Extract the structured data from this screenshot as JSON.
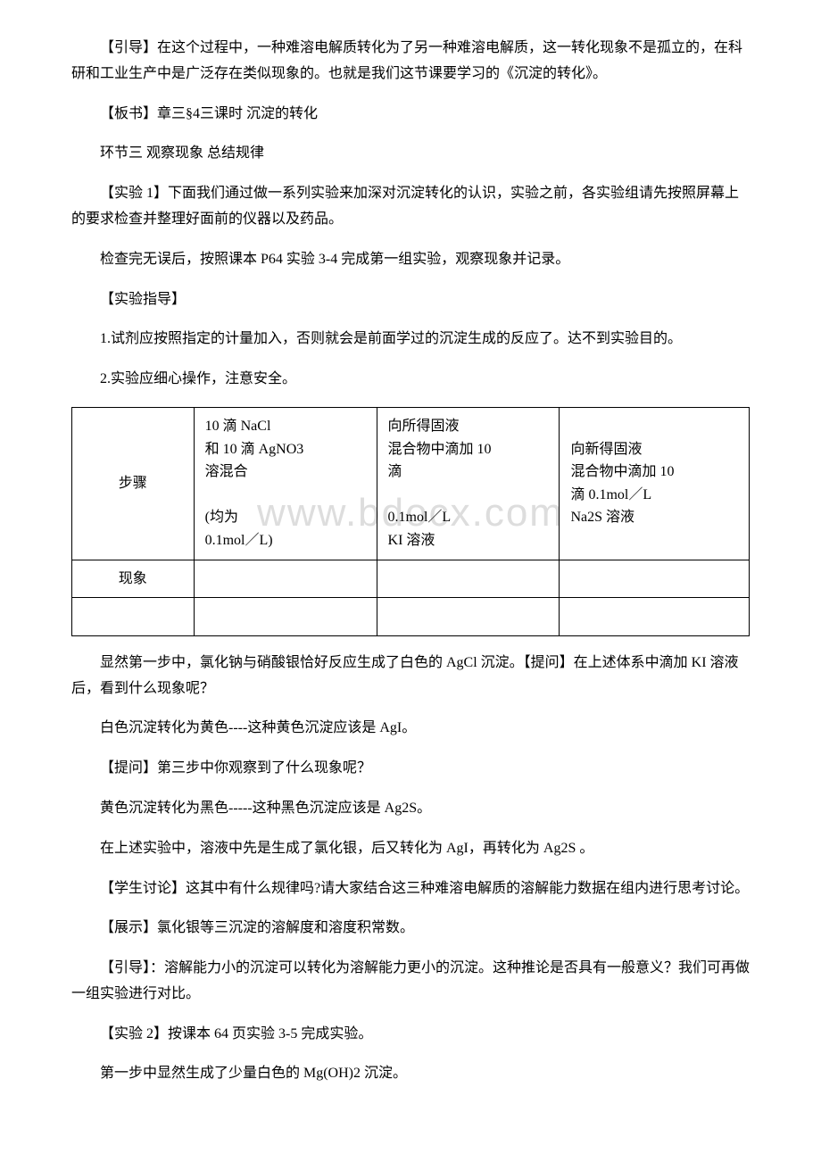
{
  "watermark": "www.bdocx.com",
  "paragraphs": {
    "p1": "【引导】在这个过程中，一种难溶电解质转化为了另一种难溶电解质，这一转化现象不是孤立的，在科研和工业生产中是广泛存在类似现象的。也就是我们这节课要学习的《沉淀的转化》。",
    "p2": "【板书】章三§4三课时 沉淀的转化",
    "p3": "环节三 观察现象 总结规律",
    "p4": "【实验 1】下面我们通过做一系列实验来加深对沉淀转化的认识，实验之前，各实验组请先按照屏幕上的要求检查并整理好面前的仪器以及药品。",
    "p5": "检查完无误后，按照课本 P64 实验 3-4 完成第一组实验，观察现象并记录。",
    "p6": "【实验指导】",
    "p7": "1.试剂应按照指定的计量加入，否则就会是前面学过的沉淀生成的反应了。达不到实验目的。",
    "p8": "2.实验应细心操作，注意安全。",
    "p9": "显然第一步中，氯化钠与硝酸银恰好反应生成了白色的 AgCl 沉淀。【提问】在上述体系中滴加 KI 溶液后，看到什么现象呢？",
    "p10": "白色沉淀转化为黄色----这种黄色沉淀应该是 AgI。",
    "p11": "【提问】第三步中你观察到了什么现象呢？",
    "p12": "黄色沉淀转化为黑色-----这种黑色沉淀应该是 Ag2S。",
    "p13": "在上述实验中，溶液中先是生成了氯化银，后又转化为 AgI，再转化为 Ag2S 。",
    "p14": "【学生讨论】这其中有什么规律吗?请大家结合这三种难溶电解质的溶解能力数据在组内进行思考讨论。",
    "p15": "【展示】氯化银等三沉淀的溶解度和溶度积常数。",
    "p16": "【引导】：溶解能力小的沉淀可以转化为溶解能力更小的沉淀。这种推论是否具有一般意义？我们可再做一组实验进行对比。",
    "p17": "【实验 2】按课本 64 页实验 3-5 完成实验。",
    "p18": "第一步中显然生成了少量白色的 Mg(OH)2 沉淀。"
  },
  "table": {
    "row1_col1": "步骤",
    "row1_col2_line1": "10 滴 NaCl",
    "row1_col2_line2": "和 10 滴 AgNO3",
    "row1_col2_line3": "溶混合",
    "row1_col2_line4": "(均为",
    "row1_col2_line5": "0.1mol／L)",
    "row1_col3_line1": "向所得固液",
    "row1_col3_line2": "混合物中滴加 10",
    "row1_col3_line3": "滴",
    "row1_col3_line4": "0.1mol／L",
    "row1_col3_line5": "KI 溶液",
    "row1_col4_line1": "向新得固液",
    "row1_col4_line2": "混合物中滴加 10",
    "row1_col4_line3": "滴 0.1mol／L",
    "row1_col4_line4": "Na2S 溶液",
    "row2_col1": "现象",
    "row2_col2": "",
    "row2_col3": "",
    "row2_col4": "",
    "row3_col1": "",
    "row3_col2": "",
    "row3_col3": "",
    "row3_col4": ""
  }
}
